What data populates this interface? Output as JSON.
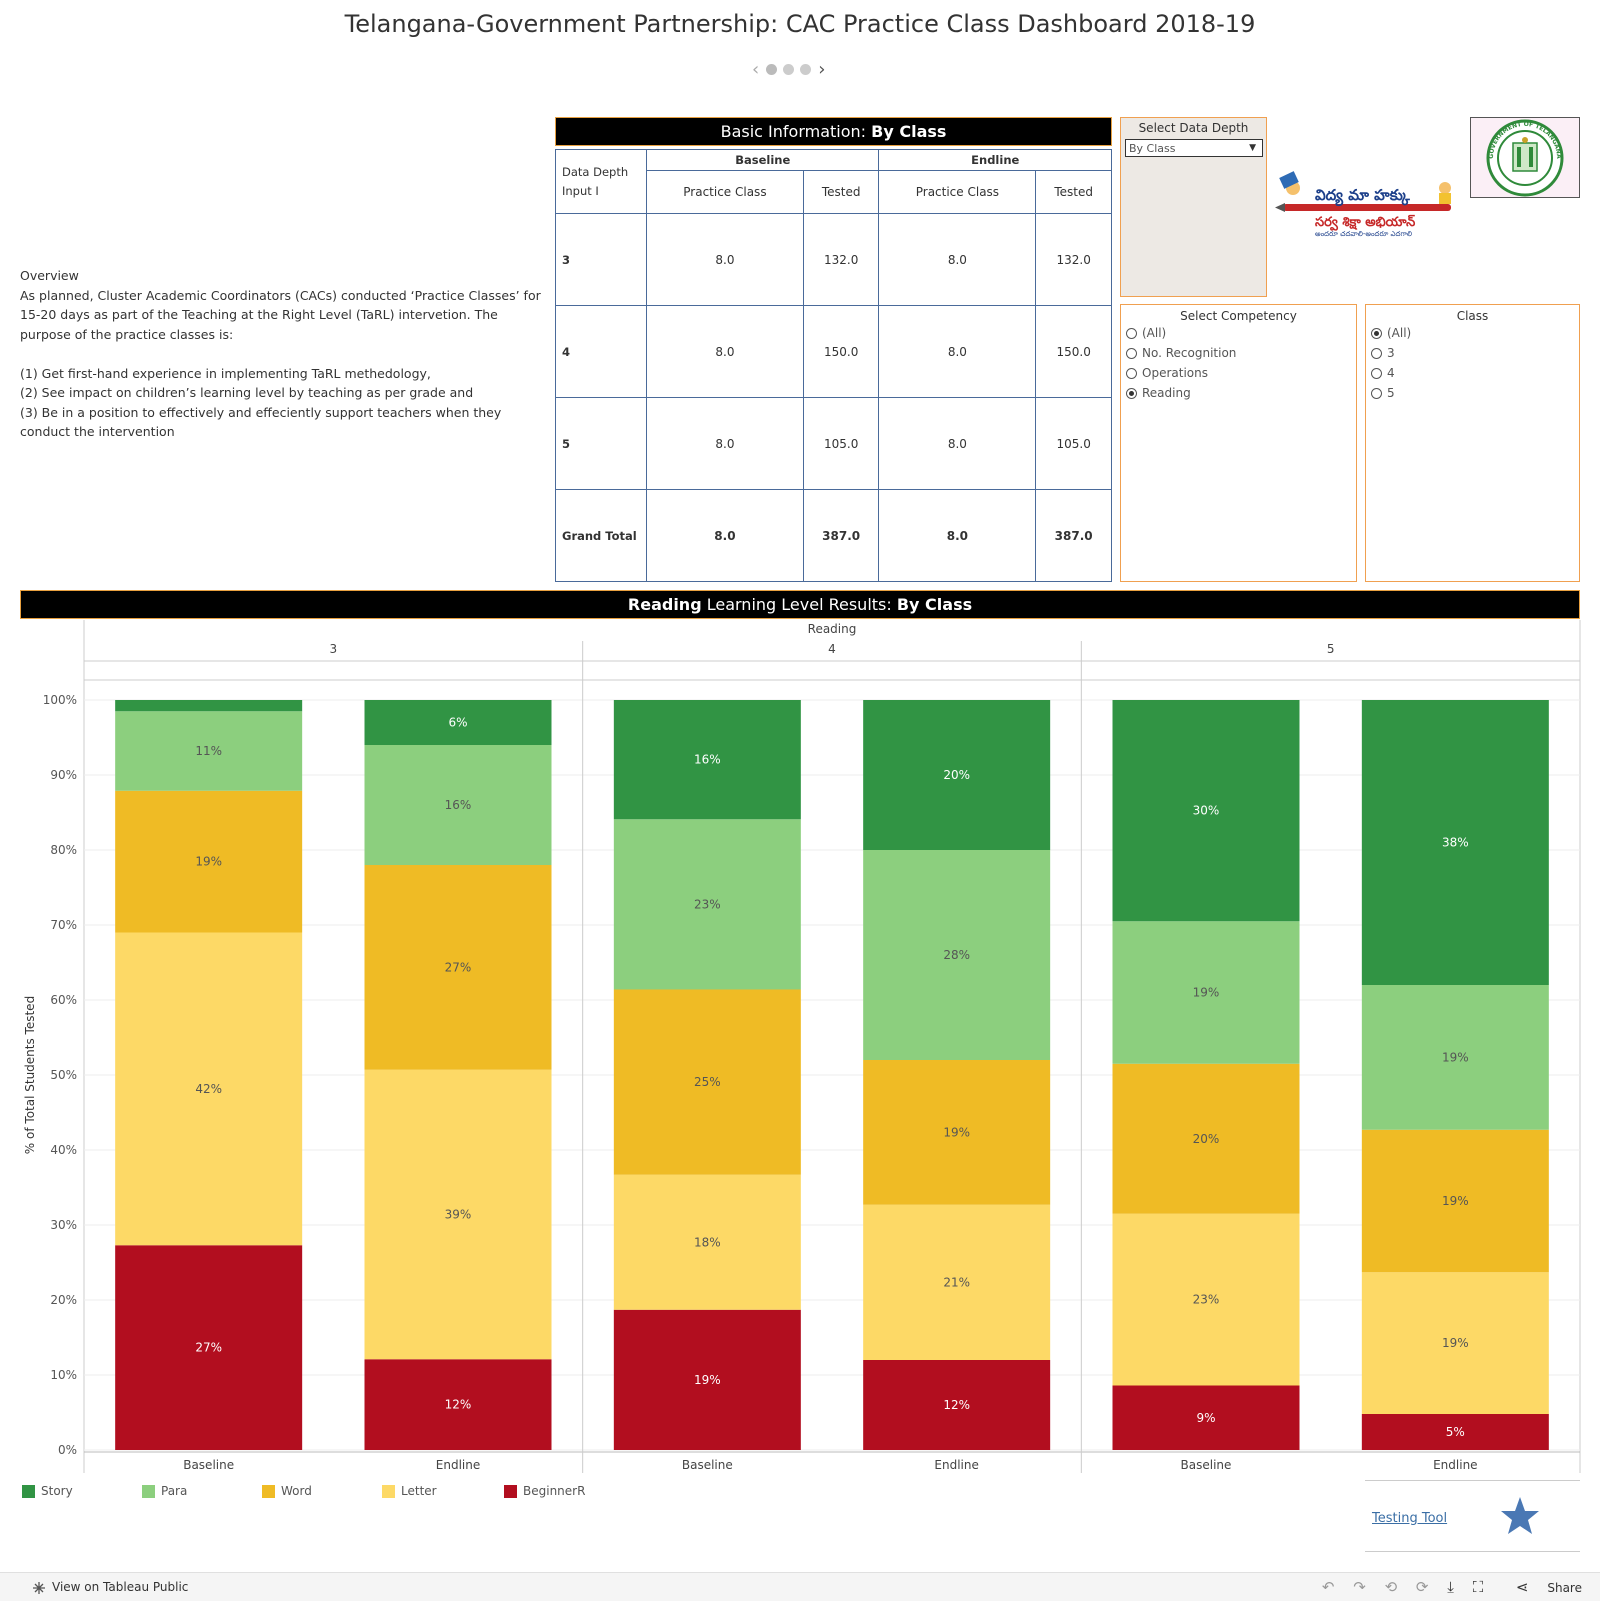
{
  "title": "Telangana-Government Partnership: CAC Practice Class Dashboard 2018-19",
  "overview": {
    "heading": "Overview",
    "intro": "As planned, Cluster Academic Coordinators (CACs) conducted ‘Practice Classes’ for 15-20 days as part of the Teaching at the Right Level (TaRL) intervetion. The purpose of the practice classes is:",
    "points": [
      "(1) Get first-hand experience in implementing TaRL methedology,",
      "(2) See impact on children’s learning level by teaching as per grade and",
      "(3) Be in a position to effectively and effeciently support teachers when they conduct the intervention"
    ]
  },
  "info": {
    "header_prefix": "Basic Information: ",
    "header_bold": "By Class",
    "corner": [
      "Data Depth",
      "Input I"
    ],
    "groups": [
      "Baseline",
      "Endline"
    ],
    "columns": [
      "Practice Class",
      "Tested",
      "Practice Class",
      "Tested"
    ],
    "rows": [
      {
        "label": "3",
        "values": [
          "8.0",
          "132.0",
          "8.0",
          "132.0"
        ]
      },
      {
        "label": "4",
        "values": [
          "8.0",
          "150.0",
          "8.0",
          "150.0"
        ]
      },
      {
        "label": "5",
        "values": [
          "8.0",
          "105.0",
          "8.0",
          "105.0"
        ]
      },
      {
        "label": "Grand Total",
        "values": [
          "8.0",
          "387.0",
          "8.0",
          "387.0"
        ]
      }
    ]
  },
  "depth_filter": {
    "title": "Select Data Depth",
    "selected": "By Class"
  },
  "competency_filter": {
    "title": "Select Competency",
    "options": [
      "(All)",
      "No. Recognition",
      "Operations",
      "Reading"
    ],
    "selected": "Reading"
  },
  "class_filter": {
    "title": "Class",
    "options": [
      "(All)",
      "3",
      "4",
      "5"
    ],
    "selected": "(All)"
  },
  "logo_text": {
    "ssa_top": "విద్య మా హక్కు",
    "ssa_mid": "సర్వ శిక్షా అభియాన్",
    "ssa_bottom": "అందరూ చదవాలి-అందరూ ఎదగాలి",
    "seal": "GOVERNMENT OF TELANGANA"
  },
  "chart_header": {
    "bold_prefix": "Reading",
    "middle": " Learning Level Results: ",
    "bold_suffix": "By Class"
  },
  "chart_data": {
    "type": "bar",
    "stacked": true,
    "top_label": "Reading",
    "ylabel": "% of Total Students Tested",
    "ylim": [
      0,
      100
    ],
    "yticks": [
      "0%",
      "10%",
      "20%",
      "30%",
      "40%",
      "50%",
      "60%",
      "70%",
      "80%",
      "90%",
      "100%"
    ],
    "groups": [
      "3",
      "4",
      "5"
    ],
    "categories": [
      "Baseline",
      "Endline"
    ],
    "series": [
      {
        "name": "BeginnerR",
        "color": "#b20e1f",
        "label_color": "#ffffff",
        "values": [
          [
            27.3,
            12.1
          ],
          [
            18.7,
            12.0
          ],
          [
            8.6,
            4.8
          ]
        ],
        "labels": [
          [
            "27%",
            "12%"
          ],
          [
            "19%",
            "12%"
          ],
          [
            "9%",
            "5%"
          ]
        ]
      },
      {
        "name": "Letter",
        "color": "#fdd966",
        "label_color": "#555555",
        "values": [
          [
            41.7,
            38.6
          ],
          [
            18.0,
            20.7
          ],
          [
            22.9,
            18.9
          ]
        ],
        "labels": [
          [
            "42%",
            "39%"
          ],
          [
            "18%",
            "21%"
          ],
          [
            "23%",
            "19%"
          ]
        ]
      },
      {
        "name": "Word",
        "color": "#efbb25",
        "label_color": "#555555",
        "values": [
          [
            18.9,
            27.3
          ],
          [
            24.7,
            19.3
          ],
          [
            20.0,
            19.0
          ]
        ],
        "labels": [
          [
            "19%",
            "27%"
          ],
          [
            "25%",
            "19%"
          ],
          [
            "20%",
            "19%"
          ]
        ]
      },
      {
        "name": "Para",
        "color": "#8ccf7e",
        "label_color": "#555555",
        "values": [
          [
            10.6,
            16.0
          ],
          [
            22.7,
            28.0
          ],
          [
            19.0,
            19.3
          ]
        ],
        "labels": [
          [
            "11%",
            "16%"
          ],
          [
            "23%",
            "28%"
          ],
          [
            "19%",
            "19%"
          ]
        ]
      },
      {
        "name": "Story",
        "color": "#319444",
        "label_color": "#ffffff",
        "values": [
          [
            1.5,
            6.0
          ],
          [
            15.9,
            20.0
          ],
          [
            29.5,
            38.0
          ]
        ],
        "labels": [
          [
            "",
            "6%"
          ],
          [
            "16%",
            "20%"
          ],
          [
            "30%",
            "38%"
          ]
        ]
      }
    ],
    "legend_order": [
      "Story",
      "Para",
      "Word",
      "Letter",
      "BeginnerR"
    ],
    "legend_position": "bottom-left",
    "grid": true
  },
  "testing_tool": {
    "label": "Testing Tool",
    "icon": "star-icon",
    "icon_color": "#4a78b4"
  },
  "footer": {
    "view_label": "View on Tableau Public",
    "share_label": "Share"
  }
}
